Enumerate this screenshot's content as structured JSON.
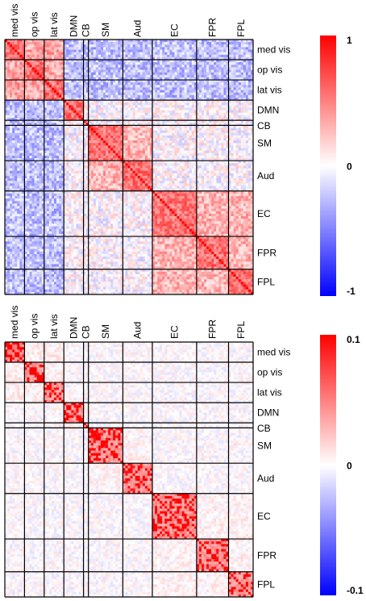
{
  "chart_data": [
    {
      "type": "heatmap",
      "networks": [
        {
          "label": "med vis",
          "size": 8
        },
        {
          "label": "op vis",
          "size": 8
        },
        {
          "label": "lat vis",
          "size": 8
        },
        {
          "label": "DMN",
          "size": 8
        },
        {
          "label": "CB",
          "size": 2
        },
        {
          "label": "SM",
          "size": 14
        },
        {
          "label": "Aud",
          "size": 12
        },
        {
          "label": "EC",
          "size": 18
        },
        {
          "label": "FPR",
          "size": 13
        },
        {
          "label": "FPL",
          "size": 10
        }
      ],
      "colorbar": {
        "ticks": [
          "1",
          "0",
          "-1"
        ],
        "range": [
          -1,
          1
        ],
        "colors": {
          "low": "#0000ff",
          "mid": "#ffffff",
          "high": "#ff0000"
        }
      },
      "pattern": {
        "within_network": 0.55,
        "within_visual": 0.35,
        "visual_vs_other": -0.25,
        "sensorimotor_block": 0.3,
        "fp_block": 0.3,
        "noise": 0.22
      }
    },
    {
      "type": "heatmap",
      "networks": [
        {
          "label": "med vis",
          "size": 8
        },
        {
          "label": "op vis",
          "size": 8
        },
        {
          "label": "lat vis",
          "size": 8
        },
        {
          "label": "DMN",
          "size": 8
        },
        {
          "label": "CB",
          "size": 2
        },
        {
          "label": "SM",
          "size": 14
        },
        {
          "label": "Aud",
          "size": 12
        },
        {
          "label": "EC",
          "size": 18
        },
        {
          "label": "FPR",
          "size": 13
        },
        {
          "label": "FPL",
          "size": 10
        }
      ],
      "colorbar": {
        "ticks": [
          "0.1",
          "0",
          "-0.1"
        ],
        "range": [
          -0.1,
          0.1
        ],
        "colors": {
          "low": "#0000ff",
          "mid": "#ffffff",
          "high": "#ff0000"
        }
      },
      "pattern": {
        "within_network": 0.04,
        "within_visual": 0.005,
        "visual_vs_other": 0.0,
        "sensorimotor_block": 0.004,
        "fp_block": 0.004,
        "noise": 0.012
      }
    }
  ]
}
